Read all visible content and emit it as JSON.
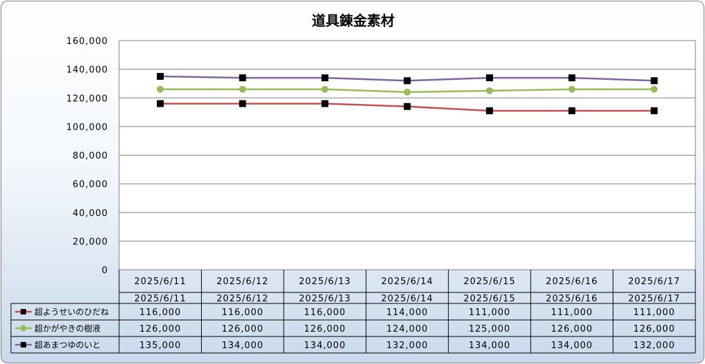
{
  "chart_data": {
    "type": "line",
    "title": "道具錬金素材",
    "categories": [
      "2025/6/11",
      "2025/6/12",
      "2025/6/13",
      "2025/6/14",
      "2025/6/15",
      "2025/6/16",
      "2025/6/17"
    ],
    "ylim": [
      0,
      160000
    ],
    "yticks": [
      "0",
      "20,000",
      "40,000",
      "60,000",
      "80,000",
      "100,000",
      "120,000",
      "140,000",
      "160,000"
    ],
    "ytick_values": [
      0,
      20000,
      40000,
      60000,
      80000,
      100000,
      120000,
      140000,
      160000
    ],
    "grid": true,
    "legend": "data-table",
    "series": [
      {
        "name": "超ようせいのひだね",
        "values": [
          116000,
          116000,
          116000,
          114000,
          111000,
          111000,
          111000
        ],
        "labels": [
          "116,000",
          "116,000",
          "116,000",
          "114,000",
          "111,000",
          "111,000",
          "111,000"
        ],
        "color": "#c0504d",
        "marker": "square"
      },
      {
        "name": "超かがやきの樹液",
        "values": [
          126000,
          126000,
          126000,
          124000,
          125000,
          126000,
          126000
        ],
        "labels": [
          "126,000",
          "126,000",
          "126,000",
          "124,000",
          "125,000",
          "126,000",
          "126,000"
        ],
        "color": "#9bbb59",
        "marker": "circle"
      },
      {
        "name": "超あまつゆのいと",
        "values": [
          135000,
          134000,
          134000,
          132000,
          134000,
          134000,
          132000
        ],
        "labels": [
          "135,000",
          "134,000",
          "134,000",
          "132,000",
          "134,000",
          "134,000",
          "132,000"
        ],
        "color": "#8064a2",
        "marker": "square"
      }
    ]
  }
}
